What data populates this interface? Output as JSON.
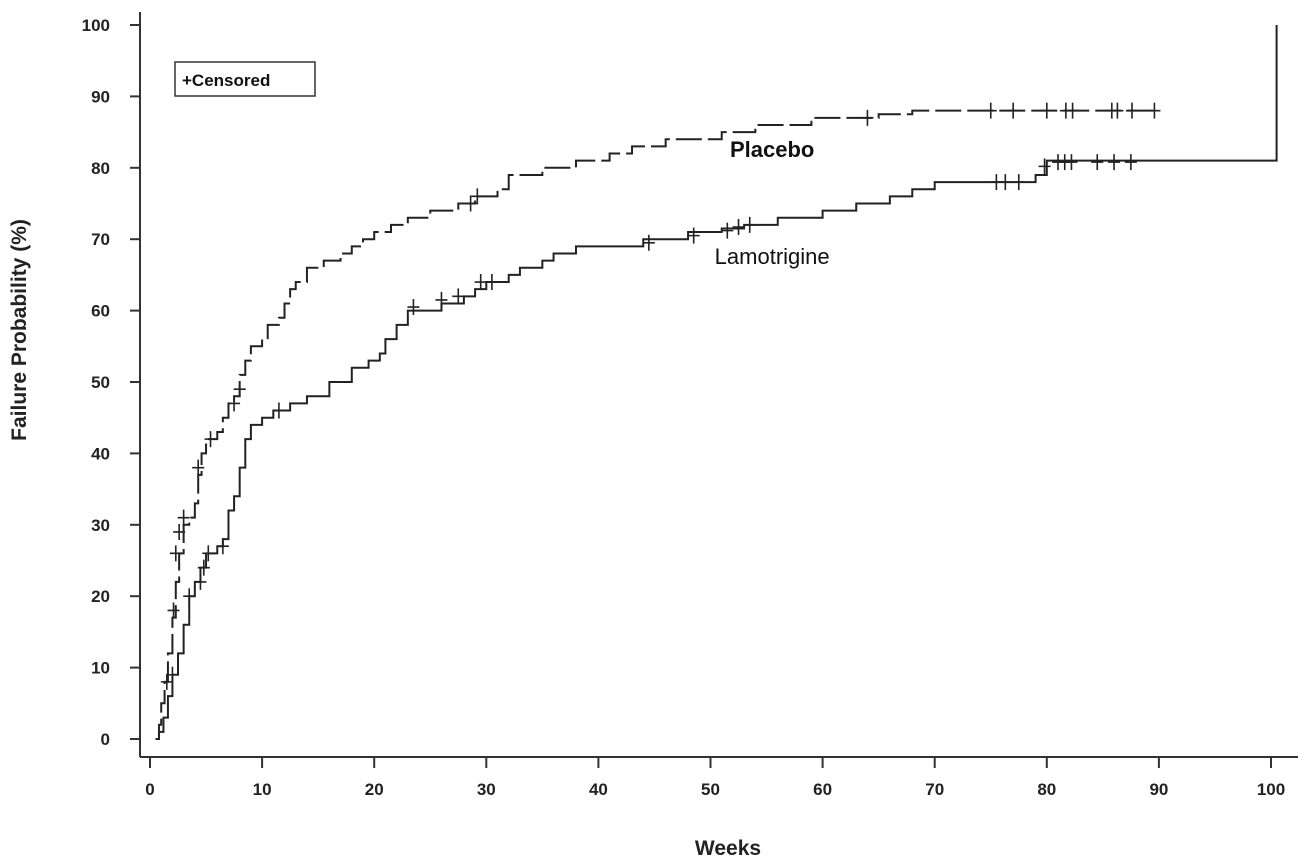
{
  "chart_data": {
    "type": "line",
    "title": "",
    "xlabel": "Weeks",
    "ylabel": "Failure Probability (%)",
    "xlim": [
      0,
      100
    ],
    "ylim": [
      0,
      100
    ],
    "xticks": [
      0,
      10,
      20,
      30,
      40,
      50,
      60,
      70,
      80,
      90,
      100
    ],
    "yticks": [
      0,
      10,
      20,
      30,
      40,
      50,
      60,
      70,
      80,
      90,
      100
    ],
    "grid": false,
    "legend": {
      "text": "+Censored",
      "position": "top-left"
    },
    "series": [
      {
        "name": "Placebo",
        "style": "dashed",
        "points": [
          [
            0.5,
            0
          ],
          [
            0.8,
            2
          ],
          [
            1,
            5
          ],
          [
            1.3,
            8
          ],
          [
            1.6,
            12
          ],
          [
            2,
            17
          ],
          [
            2.3,
            22
          ],
          [
            2.6,
            26
          ],
          [
            3,
            30
          ],
          [
            3.5,
            31
          ],
          [
            4,
            33
          ],
          [
            4.3,
            37
          ],
          [
            4.6,
            40
          ],
          [
            5,
            42
          ],
          [
            6,
            43
          ],
          [
            6.5,
            45
          ],
          [
            7,
            47
          ],
          [
            7.5,
            48
          ],
          [
            8,
            51
          ],
          [
            8.5,
            53
          ],
          [
            9,
            55
          ],
          [
            10,
            56
          ],
          [
            10.5,
            58
          ],
          [
            11.5,
            59
          ],
          [
            12,
            61
          ],
          [
            12.5,
            63
          ],
          [
            13,
            64
          ],
          [
            14,
            66
          ],
          [
            15.5,
            67
          ],
          [
            17,
            68
          ],
          [
            18,
            69
          ],
          [
            19,
            70
          ],
          [
            20,
            71
          ],
          [
            21.5,
            72
          ],
          [
            23,
            73
          ],
          [
            25,
            74
          ],
          [
            27.5,
            75
          ],
          [
            29,
            76
          ],
          [
            31,
            77
          ],
          [
            32,
            79
          ],
          [
            35,
            80
          ],
          [
            38,
            81
          ],
          [
            41,
            82
          ],
          [
            43,
            83
          ],
          [
            46,
            84
          ],
          [
            51,
            85
          ],
          [
            54,
            86
          ],
          [
            59,
            87
          ],
          [
            65,
            87.5
          ],
          [
            68,
            88
          ],
          [
            90,
            88
          ]
        ],
        "censored": [
          [
            2.1,
            18
          ],
          [
            2.3,
            26
          ],
          [
            2.6,
            29
          ],
          [
            3,
            31
          ],
          [
            4.3,
            38
          ],
          [
            5.4,
            42
          ],
          [
            7.5,
            47
          ],
          [
            8,
            49
          ],
          [
            28.6,
            75
          ],
          [
            29.2,
            76
          ],
          [
            64,
            87
          ],
          [
            75,
            88
          ],
          [
            77,
            88
          ],
          [
            80,
            88
          ],
          [
            81.7,
            88
          ],
          [
            82.3,
            88
          ],
          [
            85.8,
            88
          ],
          [
            86.3,
            88
          ],
          [
            87.6,
            88
          ],
          [
            89.6,
            88
          ]
        ]
      },
      {
        "name": "Lamotrigine",
        "style": "solid",
        "points": [
          [
            0.5,
            0
          ],
          [
            0.8,
            1
          ],
          [
            1.2,
            3
          ],
          [
            1.6,
            6
          ],
          [
            2,
            9
          ],
          [
            2.5,
            12
          ],
          [
            3,
            16
          ],
          [
            3.5,
            20
          ],
          [
            4,
            22
          ],
          [
            4.5,
            24
          ],
          [
            5,
            26
          ],
          [
            6,
            27
          ],
          [
            6.5,
            28
          ],
          [
            7,
            32
          ],
          [
            7.5,
            34
          ],
          [
            8,
            38
          ],
          [
            8.5,
            42
          ],
          [
            9,
            44
          ],
          [
            10,
            45
          ],
          [
            11,
            46
          ],
          [
            12.5,
            47
          ],
          [
            14,
            48
          ],
          [
            16,
            50
          ],
          [
            18,
            52
          ],
          [
            19.5,
            53
          ],
          [
            20.5,
            54
          ],
          [
            21,
            56
          ],
          [
            22,
            58
          ],
          [
            23,
            60
          ],
          [
            26,
            61
          ],
          [
            28,
            62
          ],
          [
            29,
            63
          ],
          [
            30,
            64
          ],
          [
            32,
            65
          ],
          [
            33,
            66
          ],
          [
            35,
            67
          ],
          [
            36,
            68
          ],
          [
            38,
            69
          ],
          [
            44,
            70
          ],
          [
            48,
            71
          ],
          [
            51,
            71.5
          ],
          [
            53,
            72
          ],
          [
            56,
            73
          ],
          [
            60,
            74
          ],
          [
            63,
            75
          ],
          [
            66,
            76
          ],
          [
            68,
            77
          ],
          [
            70,
            78
          ],
          [
            76,
            78
          ],
          [
            79,
            79
          ],
          [
            80,
            81
          ],
          [
            80.5,
            81
          ],
          [
            100.5,
            81
          ],
          [
            100.5,
            100
          ]
        ],
        "censored": [
          [
            1.5,
            8
          ],
          [
            2,
            9
          ],
          [
            3.5,
            20
          ],
          [
            4.5,
            22
          ],
          [
            4.8,
            24
          ],
          [
            5.2,
            26
          ],
          [
            6.5,
            27
          ],
          [
            11.5,
            46
          ],
          [
            23.5,
            60.5
          ],
          [
            26,
            61.5
          ],
          [
            27.5,
            62
          ],
          [
            29.5,
            64
          ],
          [
            30.5,
            64
          ],
          [
            44.5,
            69.5
          ],
          [
            48.5,
            70.5
          ],
          [
            51.5,
            71.2
          ],
          [
            52.5,
            71.7
          ],
          [
            53.5,
            72
          ],
          [
            75.5,
            78
          ],
          [
            76.3,
            78
          ],
          [
            77.5,
            78
          ],
          [
            79.8,
            80.2
          ],
          [
            81,
            80.8
          ],
          [
            81.6,
            80.8
          ],
          [
            82.2,
            80.8
          ],
          [
            84.5,
            80.8
          ],
          [
            86,
            80.8
          ],
          [
            87.5,
            80.8
          ]
        ]
      }
    ],
    "annotations": [
      {
        "text": "Placebo",
        "x": 55.5,
        "y": 81.5
      },
      {
        "text": "Lamotrigine",
        "x": 55.5,
        "y": 66.5
      }
    ]
  }
}
